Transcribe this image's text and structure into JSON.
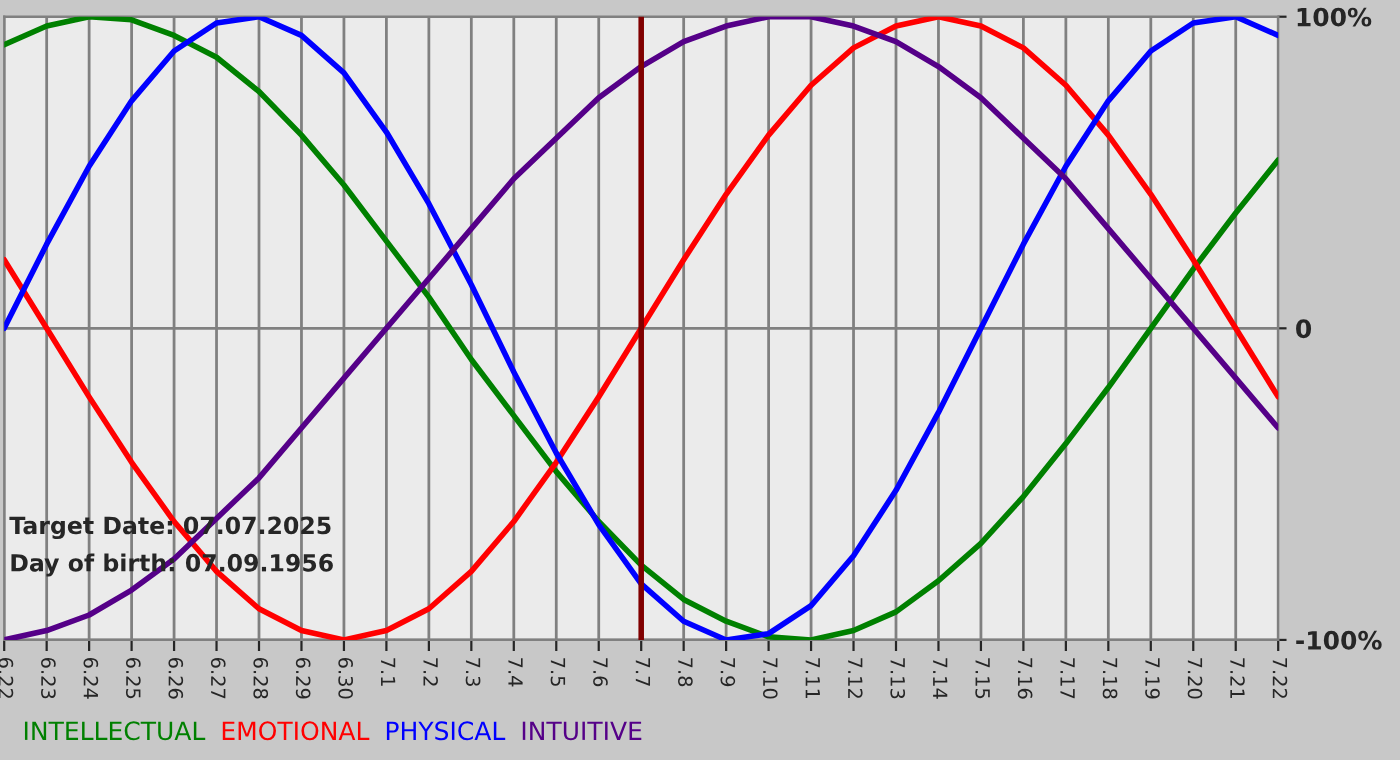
{
  "chart_data": {
    "type": "line",
    "categories": [
      "6.22",
      "6.23",
      "6.24",
      "6.25",
      "6.26",
      "6.27",
      "6.28",
      "6.29",
      "6.30",
      "7.1",
      "7.2",
      "7.3",
      "7.4",
      "7.5",
      "7.6",
      "7.7",
      "7.8",
      "7.9",
      "7.10",
      "7.11",
      "7.12",
      "7.13",
      "7.14",
      "7.15",
      "7.16",
      "7.17",
      "7.18",
      "7.19",
      "7.20",
      "7.21",
      "7.22"
    ],
    "series": [
      {
        "name": "INTELLECTUAL",
        "color": "#008000",
        "values": [
          91,
          97,
          100,
          99,
          94,
          87,
          76,
          62,
          46,
          28,
          10,
          -10,
          -28,
          -46,
          -62,
          -76,
          -87,
          -94,
          -99,
          -100,
          -97,
          -91,
          -81,
          -69,
          -54,
          -37,
          -19,
          0,
          19,
          37,
          54
        ]
      },
      {
        "name": "EMOTIONAL",
        "color": "#ff0000",
        "values": [
          22,
          0,
          -22,
          -43,
          -62,
          -78,
          -90,
          -97,
          -100,
          -97,
          -90,
          -78,
          -62,
          -43,
          -22,
          0,
          22,
          43,
          62,
          78,
          90,
          97,
          100,
          97,
          90,
          78,
          62,
          43,
          22,
          0,
          -22
        ]
      },
      {
        "name": "PHYSICAL",
        "color": "#0000ff",
        "values": [
          0,
          27,
          52,
          73,
          89,
          98,
          100,
          94,
          82,
          63,
          40,
          14,
          -14,
          -40,
          -63,
          -82,
          -94,
          -100,
          -98,
          -89,
          -73,
          -52,
          -27,
          0,
          27,
          52,
          73,
          89,
          98,
          100,
          94
        ]
      },
      {
        "name": "INTUITIVE",
        "color": "#550088",
        "values": [
          -100,
          -97,
          -92,
          -84,
          -74,
          -61,
          -48,
          -32,
          -16,
          0,
          16,
          32,
          48,
          61,
          74,
          84,
          92,
          97,
          100,
          100,
          97,
          92,
          84,
          74,
          61,
          48,
          32,
          16,
          0,
          -16,
          -32
        ]
      }
    ],
    "ylim": [
      -100,
      100
    ],
    "yticks": [
      {
        "value": 100,
        "label": "100%"
      },
      0,
      {
        "value": -100,
        "label": "-100%"
      }
    ],
    "ref_lines": [
      {
        "axis": "x",
        "value": "7.7",
        "color": "#800000"
      }
    ],
    "annotations": [
      "Target Date: 07.07.2025",
      "Day of birth: 07.09.1956"
    ],
    "grid": true,
    "legend": "bottom",
    "marker": "none",
    "line_style": "solid"
  }
}
